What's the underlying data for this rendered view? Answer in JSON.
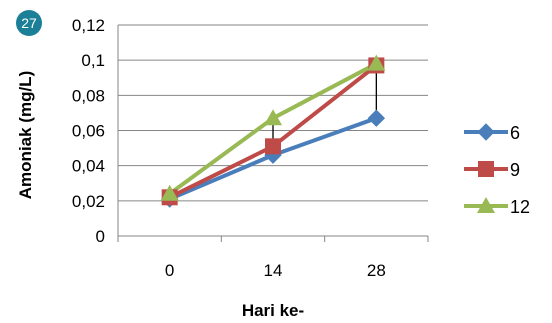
{
  "badge": {
    "text": "27",
    "color": "#1b7f97"
  },
  "chart_data": {
    "type": "line",
    "xlabel": "Hari ke-",
    "ylabel": "Amoniak (mg/L)",
    "categories": [
      "0",
      "14",
      "28"
    ],
    "ylim": [
      0,
      0.12
    ],
    "y_ticks": [
      "0",
      "0,02",
      "0,04",
      "0,06",
      "0,08",
      "0,1",
      "0,12"
    ],
    "grid": true,
    "legend_position": "right",
    "series": [
      {
        "name": "6",
        "values": [
          0.021,
          0.046,
          0.067
        ],
        "color": "#4a7ebb",
        "marker": "diamond"
      },
      {
        "name": "9",
        "values": [
          0.022,
          0.051,
          0.097
        ],
        "color": "#be4b48",
        "marker": "square"
      },
      {
        "name": "12",
        "values": [
          0.024,
          0.067,
          0.098
        ],
        "color": "#98b954",
        "marker": "triangle"
      }
    ],
    "error_bars": [
      {
        "category": "14",
        "low": 0.046,
        "high": 0.067
      },
      {
        "category": "28",
        "low": 0.067,
        "high": 0.098
      }
    ]
  }
}
